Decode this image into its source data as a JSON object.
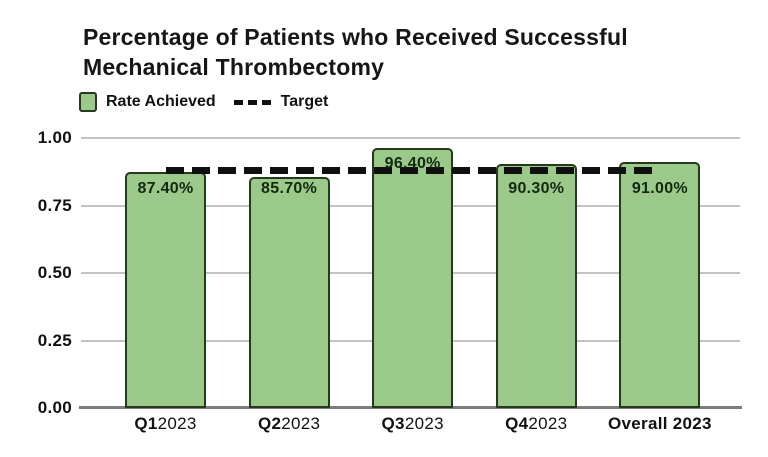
{
  "header": {
    "title": "Percentage of Patients who Received Successful Mechanical Thrombectomy"
  },
  "legend": {
    "rate_label": "Rate Achieved",
    "target_label": "Target"
  },
  "chart_data": {
    "type": "bar",
    "title": "Percentage of Patients who Received Successful Mechanical Thrombectomy",
    "categories": [
      "Q12023",
      "Q22023",
      "Q32023",
      "Q42023",
      "Overall 2023"
    ],
    "category_parts": [
      {
        "bold": "Q1",
        "rest": "2023"
      },
      {
        "bold": "Q2",
        "rest": "2023"
      },
      {
        "bold": "Q3",
        "rest": "2023"
      },
      {
        "bold": "Q4",
        "rest": "2023"
      },
      {
        "bold": "Overall 2023",
        "rest": ""
      }
    ],
    "values": [
      0.874,
      0.857,
      0.964,
      0.903,
      0.91
    ],
    "value_labels": [
      "87.40%",
      "85.70%",
      "96.40%",
      "90.30%",
      "91.00%"
    ],
    "target": 0.88,
    "legend_entries": [
      "Rate Achieved",
      "Target"
    ],
    "legend_position": "top-left",
    "y_ticks": [
      {
        "label": "1.00",
        "value": 1.0
      },
      {
        "label": "0.75",
        "value": 0.75
      },
      {
        "label": "0.50",
        "value": 0.5
      },
      {
        "label": "0.25",
        "value": 0.25
      },
      {
        "label": "0.00",
        "value": 0.0
      }
    ],
    "ylim": [
      0,
      1
    ],
    "grid": true,
    "xlabel": "",
    "ylabel": "",
    "colors": {
      "bar_fill": "#9bc98a",
      "bar_border": "#24391d",
      "value_label_text": "#13290f",
      "target_line": "#101010",
      "grid_line": "#c3c3c3",
      "axis_line": "#7d7d7d",
      "tick_text": "#111111"
    }
  }
}
